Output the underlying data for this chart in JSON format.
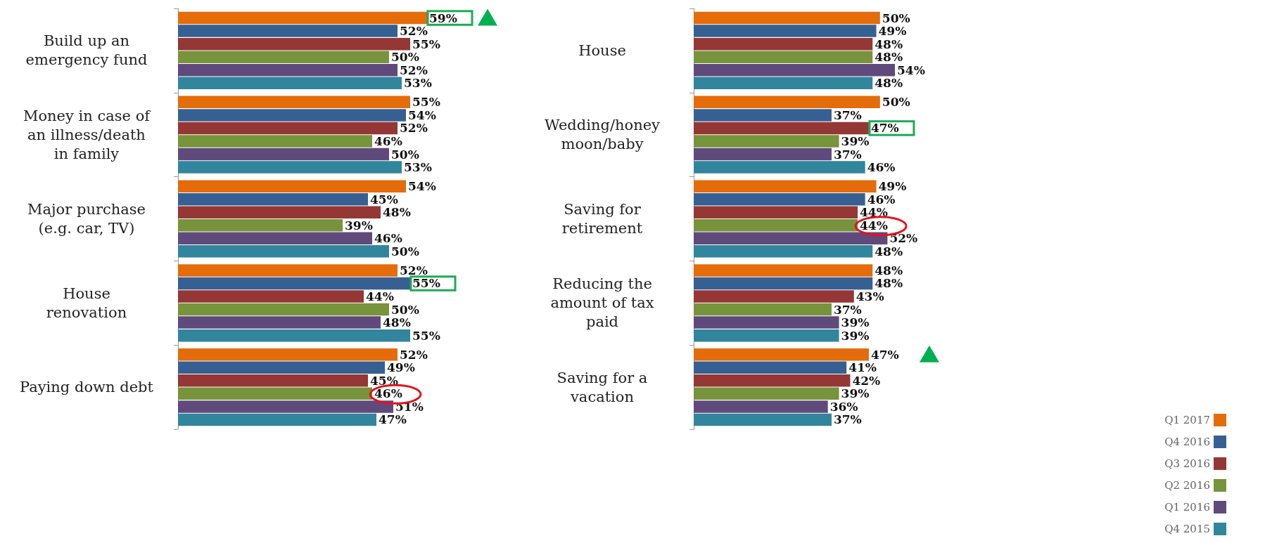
{
  "chart_data": [
    {
      "type": "bar",
      "orientation": "horizontal",
      "categories": [
        "Build up an\nemergency fund",
        "Money in case of\nan illness/death\nin family",
        "Major purchase\n(e.g. car, TV)",
        "House\nrenovation",
        "Paying down debt"
      ],
      "tick_labels": "y",
      "grid": false,
      "legend": false,
      "series": [
        {
          "color": "#e46c0a",
          "values": [
            59,
            55,
            54,
            52,
            52
          ],
          "value_labels": [
            "59%",
            "55%",
            "54%",
            "52%",
            "52%"
          ]
        },
        {
          "color": "#376092",
          "values": [
            52,
            54,
            45,
            55,
            49
          ],
          "value_labels": [
            "52%",
            "54%",
            "45%",
            "55%",
            "49%"
          ]
        },
        {
          "color": "#953735",
          "values": [
            55,
            52,
            48,
            44,
            45
          ],
          "value_labels": [
            "55%",
            "52%",
            "48%",
            "44%",
            "45%"
          ]
        },
        {
          "color": "#77933c",
          "values": [
            50,
            46,
            39,
            50,
            46
          ],
          "value_labels": [
            "50%",
            "46%",
            "39%",
            "50%",
            "46%"
          ]
        },
        {
          "color": "#604a7b",
          "values": [
            52,
            50,
            46,
            48,
            51
          ],
          "value_labels": [
            "52%",
            "50%",
            "46%",
            "48%",
            "51%"
          ]
        },
        {
          "color": "#31859c",
          "values": [
            53,
            53,
            50,
            55,
            47
          ],
          "value_labels": [
            "53%",
            "53%",
            "50%",
            "55%",
            "47%"
          ]
        }
      ]
    },
    {
      "type": "bar",
      "orientation": "horizontal",
      "categories": [
        "House",
        "Wedding/honey\nmoon/baby",
        "Saving for\nretirement",
        "Reducing the\namount of tax\npaid",
        "Saving for a\nvacation"
      ],
      "tick_labels": "y",
      "grid": false,
      "legend": "bottom right",
      "series": [
        {
          "name": "Q1 2017",
          "color": "#e46c0a",
          "values": [
            50,
            50,
            49,
            48,
            47
          ],
          "value_labels": [
            "50%",
            "50%",
            "49%",
            "48%",
            "47%"
          ]
        },
        {
          "name": "Q4 2016",
          "color": "#376092",
          "values": [
            49,
            37,
            46,
            48,
            41
          ],
          "value_labels": [
            "49%",
            "37%",
            "46%",
            "48%",
            "41%"
          ]
        },
        {
          "name": "Q3 2016",
          "color": "#953735",
          "values": [
            48,
            47,
            44,
            43,
            42
          ],
          "value_labels": [
            "48%",
            "47%",
            "44%",
            "43%",
            "42%"
          ]
        },
        {
          "name": "Q2 2016",
          "color": "#77933c",
          "values": [
            48,
            39,
            44,
            37,
            39
          ],
          "value_labels": [
            "48%",
            "39%",
            "44%",
            "37%",
            "39%"
          ]
        },
        {
          "name": "Q1 2016",
          "color": "#604a7b",
          "values": [
            54,
            37,
            52,
            39,
            36
          ],
          "value_labels": [
            "54%",
            "37%",
            "52%",
            "39%",
            "36%"
          ]
        },
        {
          "name": "Q4 2015",
          "color": "#31859c",
          "values": [
            48,
            46,
            48,
            39,
            37
          ],
          "value_labels": [
            "48%",
            "46%",
            "48%",
            "39%",
            "37%"
          ]
        }
      ]
    }
  ]
}
